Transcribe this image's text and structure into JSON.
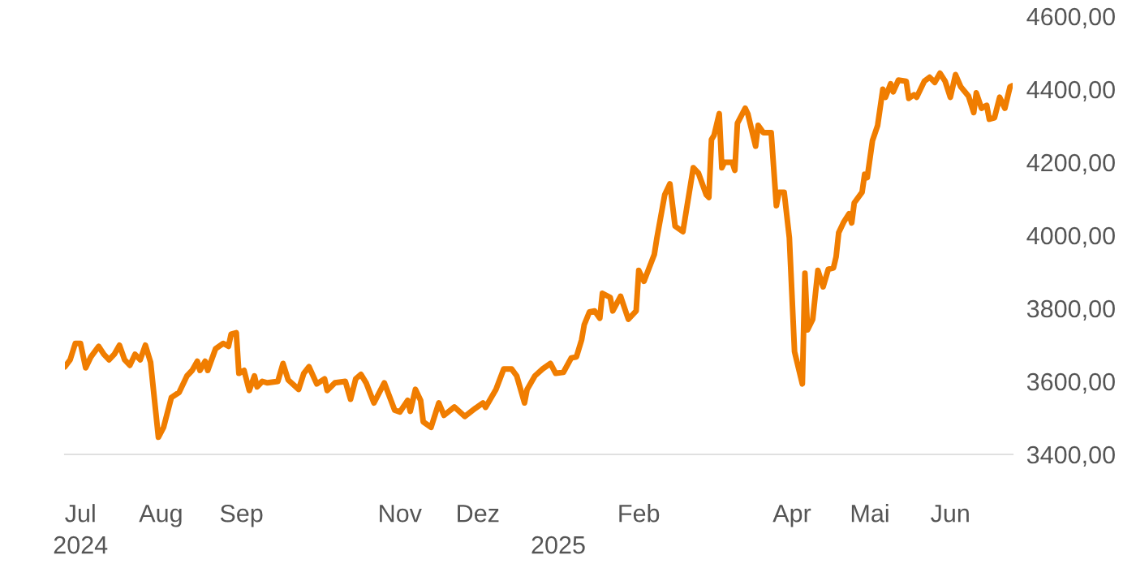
{
  "chart_data": {
    "type": "line",
    "x": [
      "2024-06-25",
      "2024-06-27",
      "2024-06-29",
      "2024-07-01",
      "2024-07-03",
      "2024-07-05",
      "2024-07-08",
      "2024-07-10",
      "2024-07-12",
      "2024-07-14",
      "2024-07-16",
      "2024-07-18",
      "2024-07-20",
      "2024-07-22",
      "2024-07-24",
      "2024-07-26",
      "2024-07-28",
      "2024-07-31",
      "2024-08-02",
      "2024-08-05",
      "2024-08-08",
      "2024-08-11",
      "2024-08-13",
      "2024-08-15",
      "2024-08-16",
      "2024-08-18",
      "2024-08-19",
      "2024-08-22",
      "2024-08-25",
      "2024-08-27",
      "2024-08-28",
      "2024-08-30",
      "2024-08-31",
      "2024-09-02",
      "2024-09-04",
      "2024-09-06",
      "2024-09-07",
      "2024-09-09",
      "2024-09-11",
      "2024-09-15",
      "2024-09-17",
      "2024-09-19",
      "2024-09-23",
      "2024-09-25",
      "2024-09-27",
      "2024-09-30",
      "2024-10-03",
      "2024-10-04",
      "2024-10-07",
      "2024-10-11",
      "2024-10-13",
      "2024-10-15",
      "2024-10-17",
      "2024-10-19",
      "2024-10-22",
      "2024-10-26",
      "2024-10-30",
      "2024-11-01",
      "2024-11-04",
      "2024-11-05",
      "2024-11-07",
      "2024-11-09",
      "2024-11-10",
      "2024-11-13",
      "2024-11-16",
      "2024-11-18",
      "2024-11-22",
      "2024-11-26",
      "2024-11-30",
      "2024-12-03",
      "2024-12-04",
      "2024-12-08",
      "2024-12-11",
      "2024-12-14",
      "2024-12-16",
      "2024-12-19",
      "2024-12-20",
      "2024-12-23",
      "2024-12-26",
      "2024-12-29",
      "2024-12-31",
      "2025-01-03",
      "2025-01-06",
      "2025-01-08",
      "2025-01-10",
      "2025-01-11",
      "2025-01-13",
      "2025-01-15",
      "2025-01-17",
      "2025-01-18",
      "2025-01-21",
      "2025-01-22",
      "2025-01-25",
      "2025-01-28",
      "2025-01-31",
      "2025-02-01",
      "2025-02-03",
      "2025-02-07",
      "2025-02-08",
      "2025-02-11",
      "2025-02-13",
      "2025-02-15",
      "2025-02-18",
      "2025-02-22",
      "2025-02-24",
      "2025-02-27",
      "2025-02-28",
      "2025-03-01",
      "2025-03-02",
      "2025-03-04",
      "2025-03-05",
      "2025-03-06",
      "2025-03-09",
      "2025-03-10",
      "2025-03-11",
      "2025-03-14",
      "2025-03-15",
      "2025-03-18",
      "2025-03-19",
      "2025-03-21",
      "2025-03-24",
      "2025-03-26",
      "2025-03-27",
      "2025-03-29",
      "2025-03-31",
      "2025-04-02",
      "2025-04-05",
      "2025-04-06",
      "2025-04-07",
      "2025-04-09",
      "2025-04-11",
      "2025-04-13",
      "2025-04-15",
      "2025-04-17",
      "2025-04-18",
      "2025-04-19",
      "2025-04-21",
      "2025-04-23",
      "2025-04-24",
      "2025-04-25",
      "2025-04-28",
      "2025-04-29",
      "2025-04-30",
      "2025-05-02",
      "2025-05-04",
      "2025-05-06",
      "2025-05-07",
      "2025-05-09",
      "2025-05-10",
      "2025-05-12",
      "2025-05-15",
      "2025-05-16",
      "2025-05-18",
      "2025-05-19",
      "2025-05-22",
      "2025-05-24",
      "2025-05-26",
      "2025-05-28",
      "2025-05-30",
      "2025-06-01",
      "2025-06-03",
      "2025-06-05",
      "2025-06-08",
      "2025-06-10",
      "2025-06-11",
      "2025-06-13",
      "2025-06-15",
      "2025-06-16",
      "2025-06-18",
      "2025-06-20",
      "2025-06-22",
      "2025-06-24",
      "2025-06-25"
    ],
    "series": [
      {
        "color": "#f07d00",
        "values": [
          3640,
          3659,
          3704,
          3704,
          3637,
          3667,
          3696,
          3674,
          3659,
          3674,
          3699,
          3659,
          3644,
          3674,
          3659,
          3699,
          3652,
          3447,
          3474,
          3556,
          3570,
          3615,
          3630,
          3655,
          3630,
          3655,
          3630,
          3689,
          3704,
          3696,
          3729,
          3733,
          3622,
          3630,
          3575,
          3615,
          3585,
          3600,
          3596,
          3600,
          3649,
          3604,
          3578,
          3622,
          3640,
          3593,
          3607,
          3575,
          3596,
          3600,
          3551,
          3607,
          3619,
          3596,
          3541,
          3596,
          3521,
          3516,
          3548,
          3518,
          3578,
          3548,
          3489,
          3474,
          3541,
          3507,
          3530,
          3504,
          3526,
          3541,
          3529,
          3578,
          3634,
          3634,
          3615,
          3541,
          3578,
          3615,
          3634,
          3649,
          3622,
          3625,
          3664,
          3667,
          3714,
          3755,
          3790,
          3793,
          3773,
          3841,
          3830,
          3793,
          3833,
          3770,
          3793,
          3904,
          3874,
          3948,
          3993,
          4111,
          4141,
          4025,
          4010,
          4185,
          4170,
          4111,
          4104,
          4262,
          4274,
          4333,
          4185,
          4200,
          4200,
          4178,
          4307,
          4348,
          4333,
          4244,
          4301,
          4281,
          4281,
          4081,
          4118,
          4118,
          3993,
          3681,
          3593,
          3896,
          3741,
          3770,
          3904,
          3859,
          3907,
          3911,
          3941,
          4007,
          4037,
          4059,
          4034,
          4089,
          4118,
          4167,
          4158,
          4259,
          4301,
          4400,
          4378,
          4415,
          4393,
          4425,
          4422,
          4375,
          4385,
          4378,
          4422,
          4433,
          4419,
          4444,
          4422,
          4378,
          4440,
          4407,
          4381,
          4336,
          4390,
          4348,
          4356,
          4318,
          4322,
          4378,
          4348,
          4407,
          4410
        ]
      }
    ],
    "xlim": [
      "2024-06-25",
      "2025-06-25"
    ],
    "x2lim": [
      "2024-06-25",
      "2025-06-25"
    ],
    "x2ticks": [
      {
        "value": "2024-07-01",
        "label": "2024"
      },
      {
        "value": "2025-01-01",
        "label": "2025"
      }
    ],
    "xticks": [
      {
        "value": "2024-07-01",
        "label": "Jul"
      },
      {
        "value": "2024-08-01",
        "label": "Aug"
      },
      {
        "value": "2024-09-01",
        "label": "Sep"
      },
      {
        "value": "2024-11-01",
        "label": "Nov"
      },
      {
        "value": "2024-12-01",
        "label": "Dez"
      },
      {
        "value": "2025-02-01",
        "label": "Feb"
      },
      {
        "value": "2025-04-01",
        "label": "Apr"
      },
      {
        "value": "2025-05-01",
        "label": "Mai"
      },
      {
        "value": "2025-06-01",
        "label": "Jun"
      }
    ],
    "ylim": [
      3400,
      4600
    ],
    "yticks": [
      {
        "value": 3400,
        "label": "3400,00"
      },
      {
        "value": 3600,
        "label": "3600,00"
      },
      {
        "value": 3800,
        "label": "3800,00"
      },
      {
        "value": 4000,
        "label": "4000,00"
      },
      {
        "value": 4200,
        "label": "4200,00"
      },
      {
        "value": 4400,
        "label": "4400,00"
      },
      {
        "value": 4600,
        "label": "4600,00"
      }
    ],
    "grid": false,
    "legend": false,
    "marker": "none",
    "line_style": "solid"
  }
}
